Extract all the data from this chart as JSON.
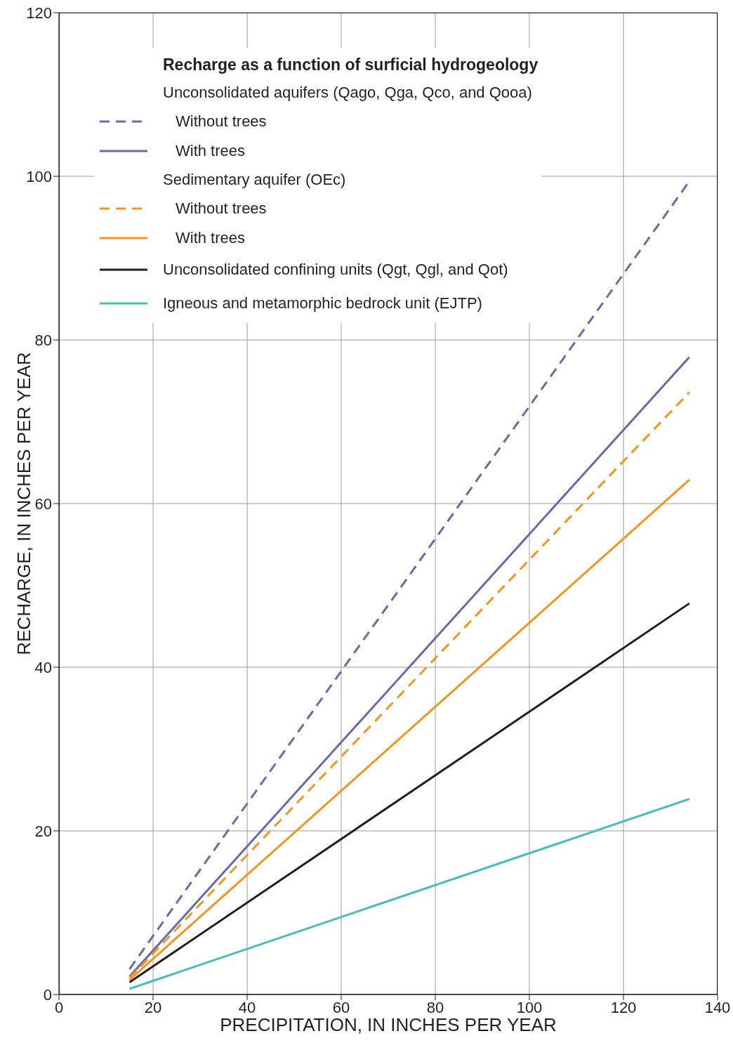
{
  "chart_data": {
    "type": "line",
    "xlabel": "PRECIPITATION, IN INCHES PER YEAR",
    "ylabel": "RECHARGE, IN INCHES PER YEAR",
    "legend_title": "Recharge as a function of surficial hydrogeology",
    "annotations": [
      "Unconsolidated aquifers (Qago, Qga, Qco, and Qooa)",
      "Sedimentary aquifer (OEc)"
    ],
    "x": [
      15,
      134
    ],
    "xlim": [
      0,
      140
    ],
    "xticks": [
      0,
      20,
      40,
      60,
      80,
      100,
      120,
      140
    ],
    "ylim": [
      0,
      120
    ],
    "yticks": [
      0,
      20,
      40,
      60,
      80,
      100,
      120
    ],
    "grid": true,
    "legend": "top left",
    "marker": "none",
    "series": [
      {
        "name": "Without trees",
        "color": "#6b6aa8",
        "line_style": "dashed",
        "values": [
          3.1,
          99.4
        ]
      },
      {
        "name": "With trees",
        "color": "#6b6aa8",
        "line_style": "solid",
        "values": [
          2.2,
          77.9
        ]
      },
      {
        "name": "Without trees",
        "color": "#f7941d",
        "line_style": "dashed",
        "values": [
          2.0,
          73.6
        ]
      },
      {
        "name": "With trees",
        "color": "#f7941d",
        "line_style": "solid",
        "values": [
          1.8,
          62.9
        ]
      },
      {
        "name": "Unconsolidated confining units (Qgt, Qgl, and Qot)",
        "color": "#231f20",
        "line_style": "solid",
        "values": [
          1.5,
          47.8
        ]
      },
      {
        "name": "Igneous and metamorphic bedrock unit (EJTP)",
        "color": "#3fbfbf",
        "line_style": "solid",
        "values": [
          0.7,
          23.9
        ]
      }
    ]
  }
}
